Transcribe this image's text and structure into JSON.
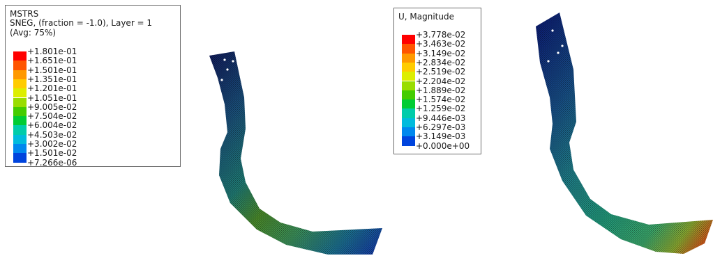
{
  "left_panel": {
    "legend": {
      "title_lines": [
        "MSTRS",
        "SNEG, (fraction = -1.0), Layer = 1",
        "(Avg: 75%)"
      ],
      "values": [
        "+1.801e-01",
        "+1.651e-01",
        "+1.501e-01",
        "+1.351e-01",
        "+1.201e-01",
        "+1.051e-01",
        "+9.005e-02",
        "+7.504e-02",
        "+6.004e-02",
        "+4.503e-02",
        "+3.002e-02",
        "+1.501e-02",
        "+7.266e-06"
      ]
    }
  },
  "right_panel": {
    "legend": {
      "title_lines": [
        "U, Magnitude"
      ],
      "values": [
        "+3.778e-02",
        "+3.463e-02",
        "+3.149e-02",
        "+2.834e-02",
        "+2.519e-02",
        "+2.204e-02",
        "+1.889e-02",
        "+1.574e-02",
        "+1.259e-02",
        "+9.446e-03",
        "+6.297e-03",
        "+3.149e-03",
        "+0.000e+00"
      ]
    }
  },
  "colors": {
    "contour_bands": [
      "#ff0000",
      "#ff5500",
      "#ff9900",
      "#ffcc00",
      "#ddee00",
      "#99dd00",
      "#44cc00",
      "#00cc33",
      "#00ccaa",
      "#00bbdd",
      "#0088ee",
      "#0044dd",
      "#0000dd"
    ]
  }
}
